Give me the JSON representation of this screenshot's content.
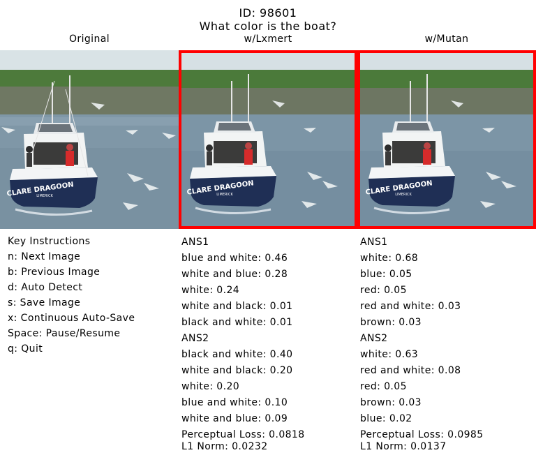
{
  "header": {
    "id_text": "ID: 98601",
    "question": "What color is the boat?"
  },
  "columns": {
    "original": "Original",
    "lxmert": "w/Lxmert",
    "mutan": "w/Mutan"
  },
  "colors": {
    "highlight_border": "#ff0000"
  },
  "images": {
    "original": {
      "boat_name": "CLARE DRAGOON",
      "port": "LIMERICK"
    },
    "lxmert": {
      "boat_name": "CLARE DRAGOON",
      "port": "LIMERICK"
    },
    "mutan": {
      "boat_name": "CLARE DRAGOON",
      "port": "LIMERICK"
    }
  },
  "instructions": {
    "title": "Key Instructions",
    "items": [
      "n: Next Image",
      "b: Previous Image",
      "d: Auto Detect",
      "s: Save Image",
      "x: Continuous Auto-Save",
      "Space: Pause/Resume",
      "q: Quit"
    ]
  },
  "lxmert": {
    "ans1_title": "ANS1",
    "ans1": [
      "blue and white: 0.46",
      "white and blue: 0.28",
      "white: 0.24",
      "white and black: 0.01",
      "black and white: 0.01"
    ],
    "ans2_title": "ANS2",
    "ans2": [
      "black and white: 0.40",
      "white and black: 0.20",
      "white: 0.20",
      "blue and white: 0.10",
      "white and blue: 0.09"
    ],
    "perceptual_loss": "Perceptual Loss: 0.0818",
    "l1_norm": "L1 Norm: 0.0232"
  },
  "mutan": {
    "ans1_title": "ANS1",
    "ans1": [
      "white: 0.68",
      "blue: 0.05",
      "red: 0.05",
      "red and white: 0.03",
      "brown: 0.03"
    ],
    "ans2_title": "ANS2",
    "ans2": [
      "white: 0.63",
      "red and white: 0.08",
      "red: 0.05",
      "brown: 0.03",
      "blue: 0.02"
    ],
    "perceptual_loss": "Perceptual Loss: 0.0985",
    "l1_norm": "L1 Norm: 0.0137"
  }
}
